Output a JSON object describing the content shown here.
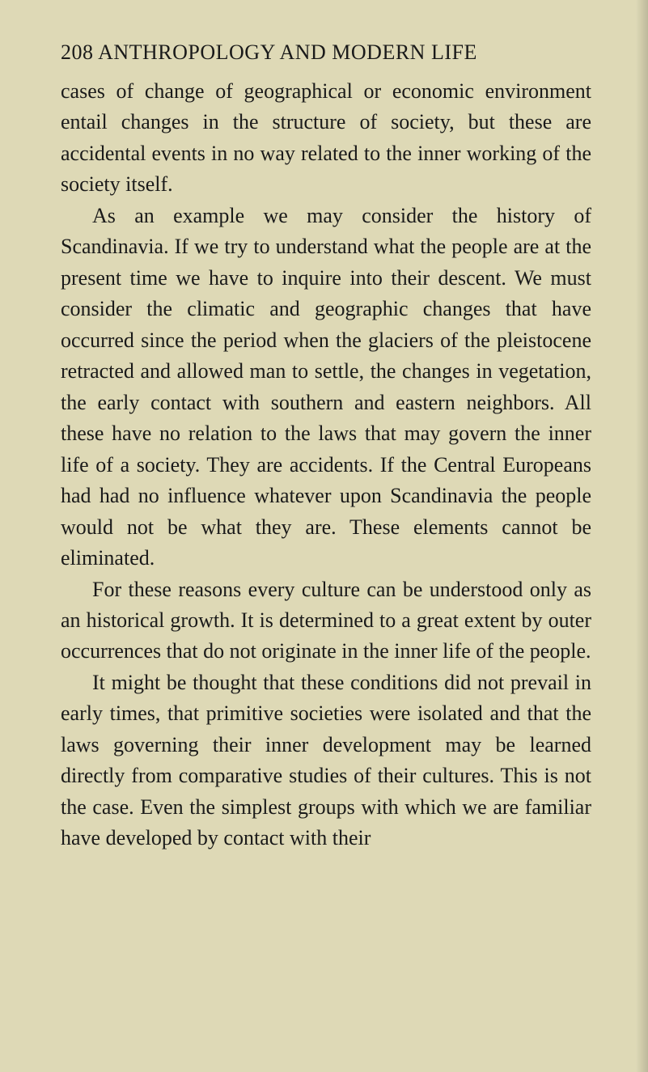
{
  "page": {
    "number": "208",
    "title": "ANTHROPOLOGY AND MODERN LIFE",
    "background_color": "#ded9b6",
    "text_color": "#1a1a1a",
    "font_family": "Georgia, serif",
    "body_fontsize": 26,
    "header_fontsize": 26,
    "line_height": 1.48,
    "paragraphs": [
      {
        "indent": false,
        "text": "cases of change of geographical or economic environment entail changes in the structure of society, but these are accidental events in no way related to the inner working of the society itself."
      },
      {
        "indent": true,
        "text": "As an example we may consider the history of Scandinavia. If we try to understand what the people are at the present time we have to inquire into their descent. We must consider the climatic and geographic changes that have occurred since the period when the glaciers of the pleistocene retracted and allowed man to settle, the changes in vegetation, the early contact with southern and eastern neighbors. All these have no relation to the laws that may govern the inner life of a society. They are accidents. If the Central Europeans had had no influence whatever upon Scandinavia the people would not be what they are. These elements cannot be eliminated."
      },
      {
        "indent": true,
        "text": "For these reasons every culture can be understood only as an historical growth. It is determined to a great extent by outer occurrences that do not originate in the inner life of the people."
      },
      {
        "indent": true,
        "text": "It might be thought that these conditions did not prevail in early times, that primitive societies were isolated and that the laws governing their inner development may be learned directly from comparative studies of their cultures. This is not the case. Even the simplest groups with which we are familiar have developed by contact with their"
      }
    ]
  }
}
